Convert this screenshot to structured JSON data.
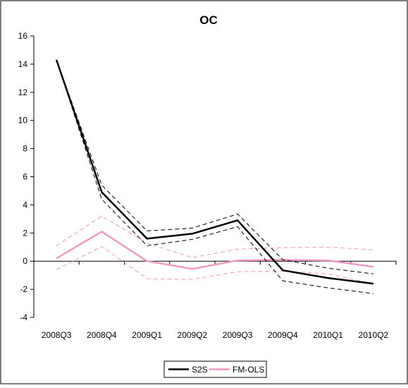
{
  "chart_data": {
    "type": "line",
    "title": "OC",
    "xlabel": "",
    "ylabel": "",
    "categories": [
      "2008Q3",
      "2008Q4",
      "2009Q1",
      "2009Q2",
      "2009Q3",
      "2009Q4",
      "2010Q1",
      "2010Q2"
    ],
    "ylim": [
      -4,
      16
    ],
    "yticks": [
      -4,
      -2,
      0,
      2,
      4,
      6,
      8,
      10,
      12,
      14,
      16
    ],
    "ytick_labels": [
      "-4",
      "-2",
      "0",
      "2",
      "4",
      "6",
      "8",
      "10",
      "12",
      "14",
      "16"
    ],
    "grid": false,
    "legend_position": "bottom-center",
    "series": [
      {
        "name": "S2S",
        "color": "#000000",
        "values": [
          14.3,
          4.9,
          1.6,
          1.95,
          2.9,
          -0.65,
          -1.2,
          -1.6
        ],
        "upper": [
          14.3,
          5.4,
          2.15,
          2.35,
          3.35,
          0.1,
          -0.5,
          -0.9
        ],
        "lower": [
          14.3,
          4.4,
          1.1,
          1.55,
          2.45,
          -1.4,
          -1.9,
          -2.3
        ]
      },
      {
        "name": "FM-OLS",
        "color": "#f29ac4",
        "values": [
          0.2,
          2.1,
          0.0,
          -0.55,
          0.05,
          0.1,
          0.05,
          -0.4
        ],
        "upper": [
          1.1,
          3.2,
          1.3,
          0.25,
          0.85,
          0.95,
          1.0,
          0.8
        ],
        "lower": [
          -0.6,
          1.05,
          -1.25,
          -1.3,
          -0.75,
          -0.7,
          -0.9,
          -1.6
        ]
      }
    ]
  }
}
